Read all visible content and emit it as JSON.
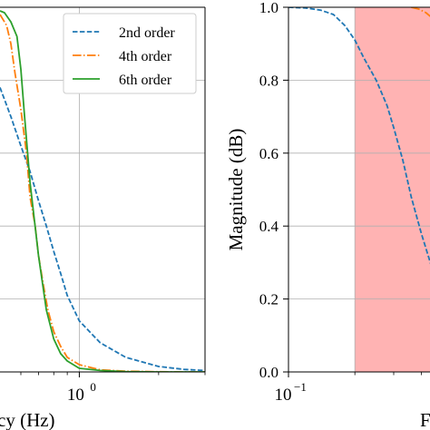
{
  "chart_data": [
    {
      "type": "line",
      "xscale": "log",
      "grid": true,
      "xlim": [
        0.5,
        3.0
      ],
      "ylim": [
        0,
        1.0
      ],
      "xlabel_visible_fragment": "cy (Hz)",
      "x_tick_labels": [
        {
          "value": 1.0,
          "base": "10",
          "exp": "0"
        }
      ],
      "legend": {
        "placement": "top-right",
        "entries": [
          "2nd order",
          "4th order",
          "6th order"
        ]
      },
      "series": [
        {
          "name": "2nd order",
          "color": "#1f77b4",
          "dash": "dashed",
          "x": [
            0.5,
            0.55,
            0.6,
            0.65,
            0.7,
            0.75,
            0.8,
            0.85,
            0.9,
            1.0,
            1.2,
            1.5,
            2.0,
            2.5,
            3.0
          ],
          "y": [
            0.78,
            0.7,
            0.62,
            0.55,
            0.47,
            0.4,
            0.33,
            0.27,
            0.21,
            0.14,
            0.08,
            0.04,
            0.015,
            0.007,
            0.004
          ]
        },
        {
          "name": "4th order",
          "color": "#ff7f0e",
          "dash": "dashdot",
          "x": [
            0.5,
            0.53,
            0.55,
            0.57,
            0.6,
            0.63,
            0.65,
            0.68,
            0.7,
            0.73,
            0.76,
            0.8,
            0.85,
            0.9,
            1.0,
            1.2,
            1.5,
            2.0,
            3.0
          ],
          "y": [
            0.98,
            0.95,
            0.9,
            0.82,
            0.72,
            0.6,
            0.48,
            0.4,
            0.32,
            0.24,
            0.17,
            0.11,
            0.07,
            0.04,
            0.02,
            0.006,
            0.002,
            0.0005,
            0.0
          ]
        },
        {
          "name": "6th order",
          "color": "#2ca02c",
          "dash": "solid",
          "x": [
            0.5,
            0.52,
            0.55,
            0.58,
            0.6,
            0.62,
            0.65,
            0.7,
            0.75,
            0.8,
            0.85,
            0.9,
            1.0,
            1.2,
            1.5,
            2.0,
            3.0
          ],
          "y": [
            0.99,
            0.985,
            0.96,
            0.92,
            0.83,
            0.7,
            0.52,
            0.32,
            0.17,
            0.09,
            0.05,
            0.03,
            0.01,
            0.004,
            0.001,
            0.0,
            0.0
          ]
        }
      ]
    },
    {
      "type": "line",
      "xscale": "log",
      "grid": true,
      "xlim": [
        0.1,
        0.9
      ],
      "ylim": [
        0,
        1.0
      ],
      "ylabel": "Magnitude (dB)",
      "xlabel_visible_fragment": "F",
      "y_tick_labels": [
        "0.0",
        "0.2",
        "0.4",
        "0.6",
        "0.8",
        "1.0"
      ],
      "x_tick_labels": [
        {
          "value": 0.1,
          "base": "10",
          "exp": "−1"
        }
      ],
      "shaded_region": {
        "x_start": 0.2,
        "x_end": 0.9,
        "color": "#ff9999"
      },
      "series": [
        {
          "name": "2nd order",
          "color": "#1f77b4",
          "dash": "dashed",
          "x": [
            0.1,
            0.12,
            0.14,
            0.16,
            0.18,
            0.2,
            0.22,
            0.25,
            0.28,
            0.3,
            0.33,
            0.36,
            0.4,
            0.45,
            0.5,
            0.55,
            0.6,
            0.65
          ],
          "y": [
            1.0,
            0.998,
            0.992,
            0.98,
            0.95,
            0.91,
            0.86,
            0.8,
            0.73,
            0.67,
            0.58,
            0.48,
            0.38,
            0.28,
            0.19,
            0.12,
            0.07,
            0.04
          ]
        },
        {
          "name": "4th order",
          "color": "#ff7f0e",
          "dash": "dashdot",
          "x": [
            0.36,
            0.39,
            0.42,
            0.45,
            0.48,
            0.5
          ],
          "y": [
            1.0,
            0.995,
            0.985,
            0.97,
            0.95,
            0.94
          ]
        }
      ]
    }
  ]
}
